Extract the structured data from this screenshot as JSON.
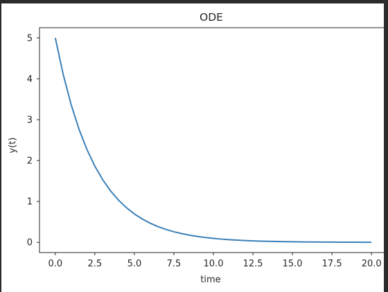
{
  "chart_data": {
    "type": "line",
    "title": "ODE",
    "xlabel": "time",
    "ylabel": "y(t)",
    "xlim": [
      -1.0,
      21.0
    ],
    "ylim": [
      -0.25,
      5.25
    ],
    "xticks": [
      0.0,
      2.5,
      5.0,
      7.5,
      10.0,
      12.5,
      15.0,
      17.5,
      20.0
    ],
    "xtick_labels": [
      "0.0",
      "2.5",
      "5.0",
      "7.5",
      "10.0",
      "12.5",
      "15.0",
      "17.5",
      "20.0"
    ],
    "yticks": [
      0,
      1,
      2,
      3,
      4,
      5
    ],
    "ytick_labels": [
      "0",
      "1",
      "2",
      "3",
      "4",
      "5"
    ],
    "grid": false,
    "series": [
      {
        "color": "#3a7fb8",
        "x": [
          0,
          0.5,
          1,
          1.5,
          2,
          2.5,
          3,
          3.5,
          4,
          4.5,
          5,
          5.5,
          6,
          6.5,
          7,
          7.5,
          8,
          8.5,
          9,
          9.5,
          10,
          10.5,
          11,
          11.5,
          12,
          12.5,
          13,
          13.5,
          14,
          14.5,
          15,
          15.5,
          16,
          16.5,
          17,
          17.5,
          18,
          18.5,
          19,
          19.5,
          20
        ],
        "y": [
          5.0,
          4.105,
          3.369,
          2.766,
          2.271,
          1.864,
          1.53,
          1.256,
          1.031,
          0.847,
          0.695,
          0.571,
          0.468,
          0.384,
          0.316,
          0.259,
          0.213,
          0.175,
          0.143,
          0.118,
          0.097,
          0.079,
          0.065,
          0.054,
          0.044,
          0.036,
          0.03,
          0.024,
          0.02,
          0.016,
          0.014,
          0.011,
          0.009,
          0.007,
          0.006,
          0.005,
          0.004,
          0.003,
          0.003,
          0.002,
          0.002
        ]
      }
    ]
  }
}
